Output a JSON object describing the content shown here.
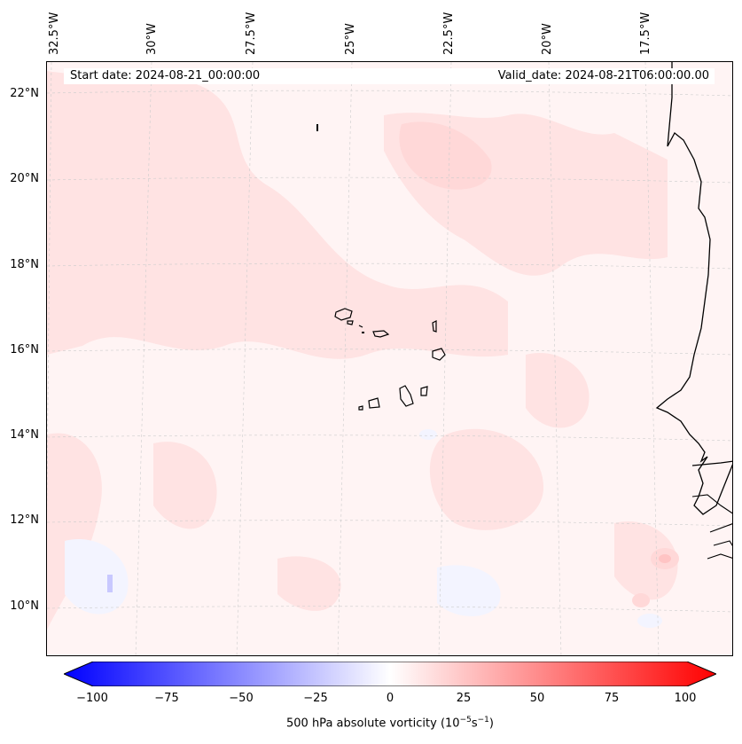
{
  "map": {
    "start_date": "Start date: 2024-08-21_00:00:00",
    "valid_date": "Valid_date: 2024-08-21T06:00:00.00",
    "lon_labels": [
      "32.5°W",
      "30°W",
      "27.5°W",
      "25°W",
      "22.5°W",
      "20°W",
      "17.5°W"
    ],
    "lat_labels": [
      "22°N",
      "20°N",
      "18°N",
      "16°N",
      "14°N",
      "12°N",
      "10°N"
    ],
    "field": "500 hPa absolute vorticity",
    "colormap": [
      "#0000ff",
      "#ffffff",
      "#ff0000"
    ],
    "coastline_color": "#000000"
  },
  "colorbar": {
    "ticks": [
      "−100",
      "−75",
      "−50",
      "−25",
      "0",
      "25",
      "50",
      "75",
      "100"
    ],
    "min": -100,
    "max": 100,
    "label": "500 hPa absolute vorticity (10",
    "label_exp1": "−5",
    "label_mid": "s",
    "label_exp2": "−1",
    "label_end": ")"
  }
}
